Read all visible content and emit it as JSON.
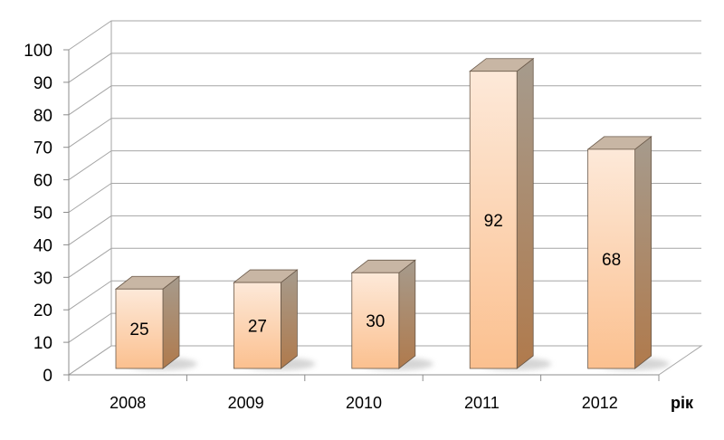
{
  "chart_data": {
    "type": "bar",
    "categories": [
      "2008",
      "2009",
      "2010",
      "2011",
      "2012"
    ],
    "values": [
      25,
      27,
      30,
      92,
      68
    ],
    "title": "",
    "xlabel": "рік",
    "ylabel": "",
    "ylim": [
      0,
      100
    ],
    "yticks": [
      0,
      10,
      20,
      30,
      40,
      50,
      60,
      70,
      80,
      90,
      100
    ],
    "grid": true,
    "style": "3d",
    "data_labels": true,
    "colors": {
      "bar_front_top": "#fde9d9",
      "bar_front_bottom": "#fbc08f",
      "bar_side_top": "#a69b8d",
      "bar_side_bottom": "#b07a4c",
      "bar_top": "#c8b6a4",
      "grid": "#a6a6a6",
      "shadow": "#c8c8c8"
    }
  }
}
